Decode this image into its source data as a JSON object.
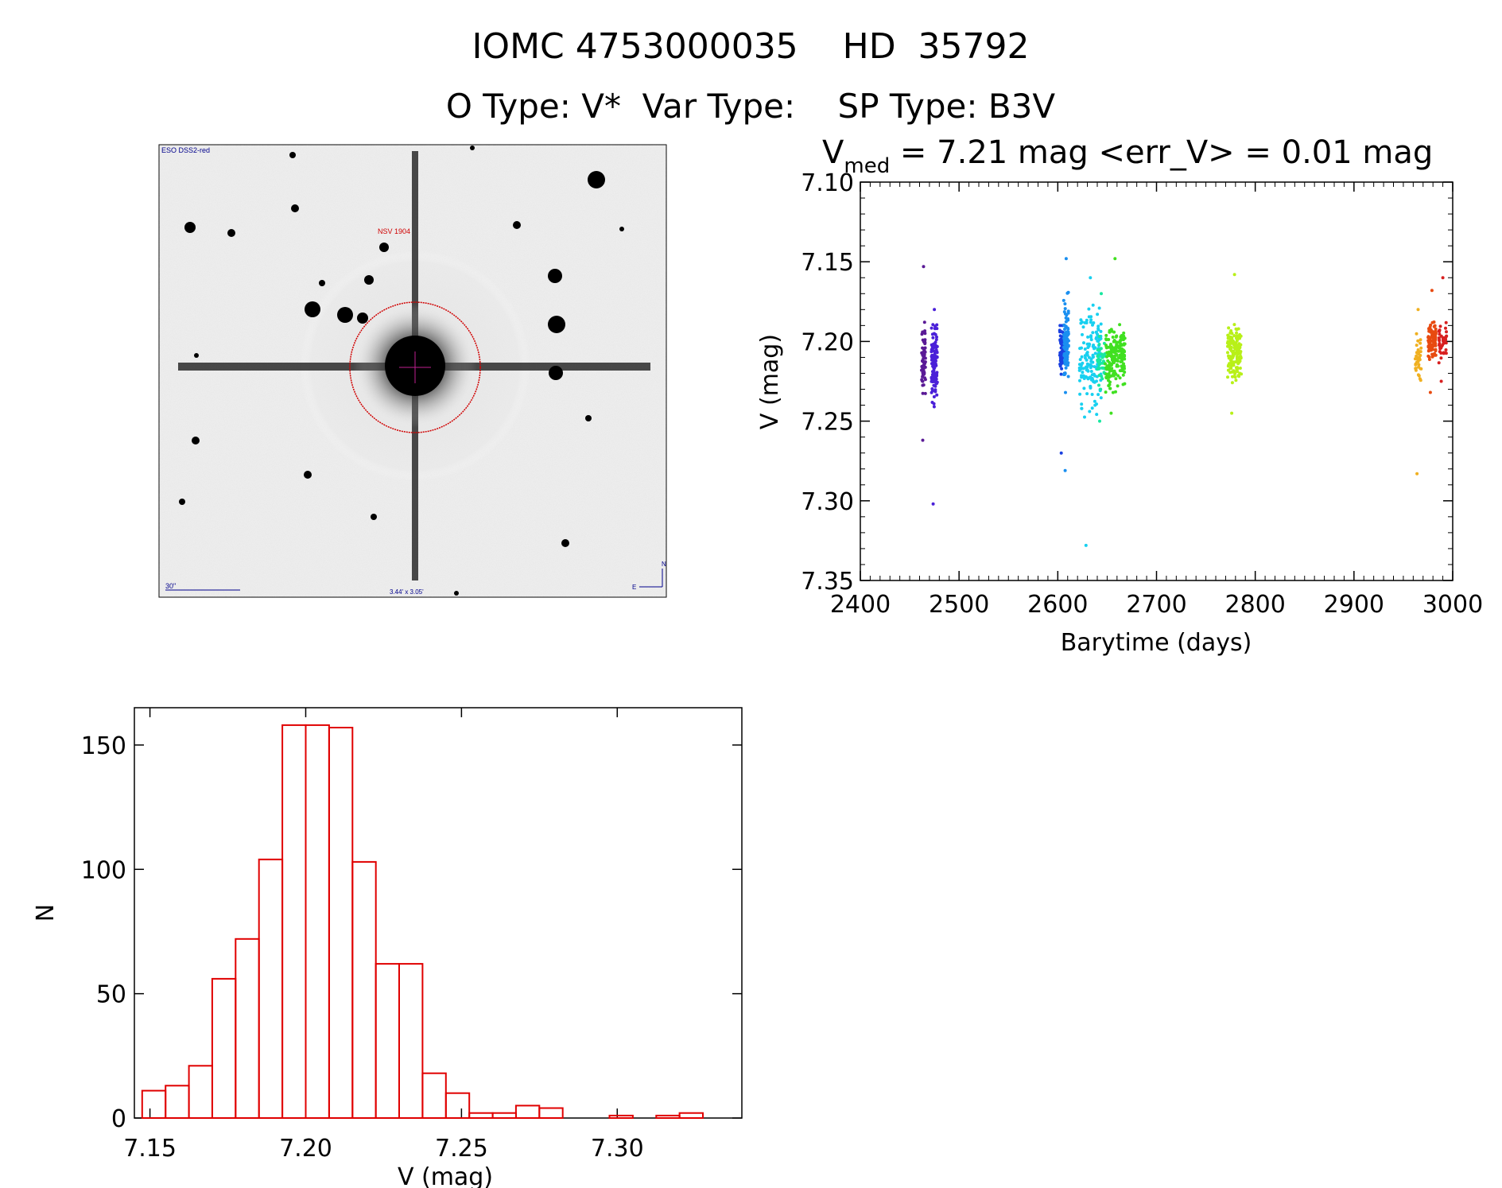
{
  "header": {
    "title_line1": "IOMC 4753000035    HD  35792",
    "title_line2": "O Type: V*  Var Type:    SP Type: B3V"
  },
  "image_panel": {
    "survey_label": "ESO DSS2-red",
    "object_label": "NSV 1904",
    "scale_label": "30\"",
    "size_label": "3.44' x 3.05'",
    "compass_north": "N",
    "compass_east": "E"
  },
  "chart_data": [
    {
      "type": "scatter",
      "title_main": "V",
      "title_sub": "med",
      "title_rest": " = 7.21 mag <err_V> = 0.01 mag",
      "xlabel": "Barytime (days)",
      "ylabel": "V (mag)",
      "xlim": [
        2400,
        3000
      ],
      "ylim": [
        7.35,
        7.1
      ],
      "y_inverted": true,
      "x_ticks": [
        2400,
        2500,
        2600,
        2700,
        2800,
        2900,
        3000
      ],
      "y_ticks": [
        "7.10",
        "7.15",
        "7.20",
        "7.25",
        "7.30",
        "7.35"
      ],
      "series": [
        {
          "color": "#5a1a96",
          "x": [
            2462,
            2466
          ],
          "y_range": [
            7.153,
            7.262
          ],
          "y_center": 7.21,
          "n": 70
        },
        {
          "color": "#4a20d8",
          "x": [
            2472,
            2478
          ],
          "y_range": [
            7.18,
            7.302
          ],
          "y_center": 7.215,
          "n": 110
        },
        {
          "color": "#1a40e0",
          "x": [
            2602,
            2607
          ],
          "y_range": [
            7.19,
            7.27
          ],
          "y_center": 7.205,
          "n": 90
        },
        {
          "color": "#1a8ff0",
          "x": [
            2606,
            2611
          ],
          "y_range": [
            7.148,
            7.281
          ],
          "y_center": 7.2,
          "n": 100
        },
        {
          "color": "#18d0f0",
          "x": [
            2622,
            2644
          ],
          "y_range": [
            7.16,
            7.328
          ],
          "y_center": 7.21,
          "n": 160
        },
        {
          "color": "#18e8a0",
          "x": [
            2640,
            2648
          ],
          "y_range": [
            7.17,
            7.25
          ],
          "y_center": 7.212,
          "n": 40
        },
        {
          "color": "#40e020",
          "x": [
            2648,
            2668
          ],
          "y_range": [
            7.148,
            7.245
          ],
          "y_center": 7.21,
          "n": 190
        },
        {
          "color": "#b8f018",
          "x": [
            2772,
            2786
          ],
          "y_range": [
            7.158,
            7.245
          ],
          "y_center": 7.208,
          "n": 150
        },
        {
          "color": "#f0b020",
          "x": [
            2962,
            2968
          ],
          "y_range": [
            7.18,
            7.283
          ],
          "y_center": 7.21,
          "n": 35
        },
        {
          "color": "#e84a10",
          "x": [
            2975,
            2983
          ],
          "y_range": [
            7.168,
            7.232
          ],
          "y_center": 7.2,
          "n": 90
        },
        {
          "color": "#d82020",
          "x": [
            2986,
            2994
          ],
          "y_range": [
            7.16,
            7.225
          ],
          "y_center": 7.2,
          "n": 45
        }
      ]
    },
    {
      "type": "bar",
      "subtype": "histogram",
      "xlabel": "V (mag)",
      "ylabel": "N",
      "xlim": [
        7.145,
        7.34
      ],
      "ylim": [
        0,
        165
      ],
      "x_ticks": [
        "7.15",
        "7.20",
        "7.25",
        "7.30"
      ],
      "y_ticks": [
        0,
        50,
        100,
        150
      ],
      "bin_start": 7.1475,
      "bin_width": 0.0075,
      "values": [
        11,
        13,
        21,
        56,
        72,
        104,
        158,
        158,
        157,
        103,
        62,
        62,
        18,
        10,
        2,
        2,
        5,
        4,
        0,
        0,
        1,
        0,
        1,
        2
      ],
      "color": "#e00000"
    }
  ]
}
